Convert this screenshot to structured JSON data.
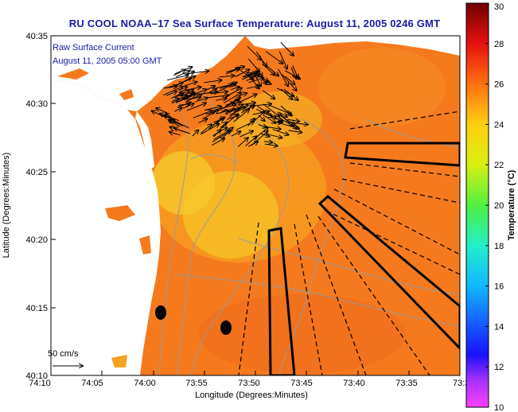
{
  "title": "RU COOL  NOAA–17  Sea Surface Temperature:  August 11, 2005 0246 GMT",
  "annotation": {
    "line1": "Raw Surface Current",
    "line2": "August 11, 2005 05:00 GMT",
    "scale_label": "50 cm/s"
  },
  "axes": {
    "xlabel": "Longitude (Degrees:Minutes)",
    "ylabel": "Latitude (Degrees:Minutes)",
    "xticks": [
      "74:10",
      "74:05",
      "74:00",
      "73:55",
      "73:50",
      "73:45",
      "73:40",
      "73:35",
      "73:3"
    ],
    "yticks": [
      "40:35",
      "40:30",
      "40:25",
      "40:20",
      "40:15",
      "40:10"
    ]
  },
  "colorbar": {
    "label": "Temperature (°C)",
    "ticks": [
      "30",
      "28",
      "26",
      "24",
      "22",
      "20",
      "18",
      "16",
      "14",
      "12",
      "10"
    ],
    "min": 10,
    "max": 30
  },
  "colors": {
    "land": "#ffffff",
    "water_warm": "#f57a1e",
    "water_cool": "#f5c22a",
    "contour": "#9a9a9a",
    "arrow": "#000000",
    "text_blue": "#1a1aa8"
  }
}
